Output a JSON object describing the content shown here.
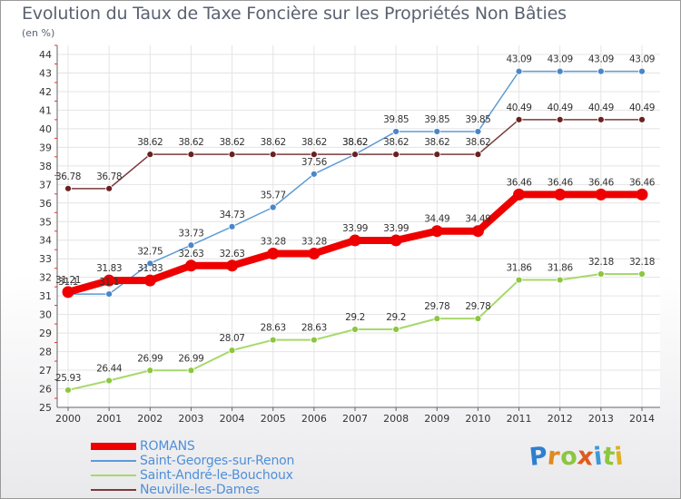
{
  "title": "Evolution du Taux de Taxe Foncière sur les Propriétés Non Bâties",
  "subtitle": "(en %)",
  "logo": {
    "letters": [
      "P",
      "r",
      "o",
      "x",
      "i",
      "t",
      "i"
    ]
  },
  "chart_data": {
    "type": "line",
    "x": [
      "2000",
      "2001",
      "2002",
      "2003",
      "2004",
      "2005",
      "2006",
      "2007",
      "2008",
      "2009",
      "2010",
      "2011",
      "2012",
      "2013",
      "2014"
    ],
    "ylim": [
      25,
      44
    ],
    "yticks": [
      25,
      26,
      27,
      28,
      29,
      30,
      31,
      32,
      33,
      34,
      35,
      36,
      37,
      38,
      39,
      40,
      41,
      42,
      43,
      44
    ],
    "grid": true,
    "legend_position": "bottom-left",
    "series": [
      {
        "name": "Saint-André-le-Bouchoux",
        "color": "#a6d96a",
        "marker": "#8dc63f",
        "width": 2,
        "values": [
          25.93,
          26.44,
          26.99,
          26.99,
          28.07,
          28.63,
          28.63,
          29.2,
          29.2,
          29.78,
          29.78,
          31.86,
          31.86,
          32.18,
          32.18
        ],
        "labels": [
          "25.93",
          "26.44",
          "26.99",
          "26.99",
          "28.07",
          "28.63",
          "28.63",
          "29.2",
          "29.2",
          "29.78",
          "29.78",
          "31.86",
          "31.86",
          "32.18",
          "32.18"
        ]
      },
      {
        "name": "Saint-Georges-sur-Renon",
        "color": "#5b9bd5",
        "marker": "#4a86c8",
        "width": 1.5,
        "values": [
          31.1,
          31.1,
          32.75,
          33.73,
          34.73,
          35.77,
          37.56,
          38.62,
          39.85,
          39.85,
          39.85,
          43.09,
          43.09,
          43.09,
          43.09
        ],
        "labels": [
          "31.1",
          "31.1",
          "32.75",
          "33.73",
          "34.73",
          "35.77",
          "37.56",
          "38.62",
          "39.85",
          "39.85",
          "39.85",
          "43.09",
          "43.09",
          "43.09",
          "43.09"
        ]
      },
      {
        "name": "Neuville-les-Dames",
        "color": "#7a3b3b",
        "marker": "#6b2020",
        "width": 1.5,
        "values": [
          36.78,
          36.78,
          38.62,
          38.62,
          38.62,
          38.62,
          38.62,
          38.62,
          38.62,
          38.62,
          38.62,
          40.49,
          40.49,
          40.49,
          40.49
        ],
        "labels": [
          "36.78",
          "36.78",
          "38.62",
          "38.62",
          "38.62",
          "38.62",
          "38.62",
          "38.62",
          "38.62",
          "38.62",
          "38.62",
          "40.49",
          "40.49",
          "40.49",
          "40.49"
        ]
      },
      {
        "name": "ROMANS",
        "color": "#ee0000",
        "marker": "#ee0000",
        "width": 8,
        "values": [
          31.21,
          31.83,
          31.83,
          32.63,
          32.63,
          33.28,
          33.28,
          33.99,
          33.99,
          34.49,
          34.49,
          36.46,
          36.46,
          36.46,
          36.46
        ],
        "labels": [
          "31.21",
          "31.83",
          "31.83",
          "32.63",
          "32.63",
          "33.28",
          "33.28",
          "33.99",
          "33.99",
          "34.49",
          "34.49",
          "36.46",
          "36.46",
          "36.46",
          "36.46"
        ]
      }
    ],
    "legend_order": [
      "ROMANS",
      "Saint-Georges-sur-Renon",
      "Saint-André-le-Bouchoux",
      "Neuville-les-Dames"
    ]
  }
}
